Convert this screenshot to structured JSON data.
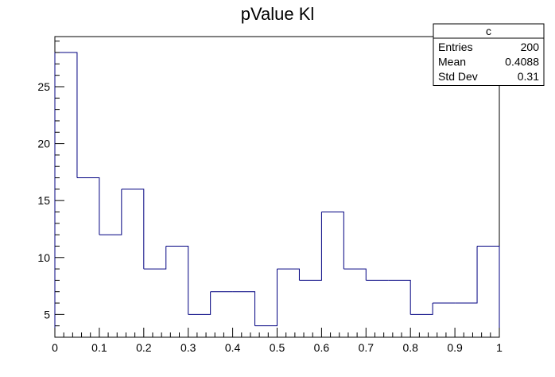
{
  "chart_data": {
    "type": "bar",
    "style": "step-histogram",
    "title": "pValue Kl",
    "xlabel": "",
    "ylabel": "",
    "xlim": [
      0,
      1
    ],
    "ylim": [
      3,
      29.4
    ],
    "bin_width": 0.05,
    "x": [
      0.0,
      0.05,
      0.1,
      0.15,
      0.2,
      0.25,
      0.3,
      0.35,
      0.4,
      0.45,
      0.5,
      0.55,
      0.6,
      0.65,
      0.7,
      0.75,
      0.8,
      0.85,
      0.9,
      0.95
    ],
    "values": [
      28,
      17,
      12,
      16,
      9,
      11,
      5,
      7,
      7,
      4,
      9,
      8,
      14,
      9,
      8,
      8,
      5,
      6,
      6,
      11
    ],
    "x_ticks": [
      "0",
      "0.1",
      "0.2",
      "0.3",
      "0.4",
      "0.5",
      "0.6",
      "0.7",
      "0.8",
      "0.9",
      "1"
    ],
    "y_ticks": [
      "5",
      "10",
      "15",
      "20",
      "25"
    ],
    "line_color": "#000080",
    "grid": false,
    "stats_box": {
      "name": "c",
      "rows": [
        {
          "label": "Entries",
          "value": "200"
        },
        {
          "label": "Mean",
          "value": "0.4088"
        },
        {
          "label": "Std Dev",
          "value": "0.31"
        }
      ]
    }
  }
}
